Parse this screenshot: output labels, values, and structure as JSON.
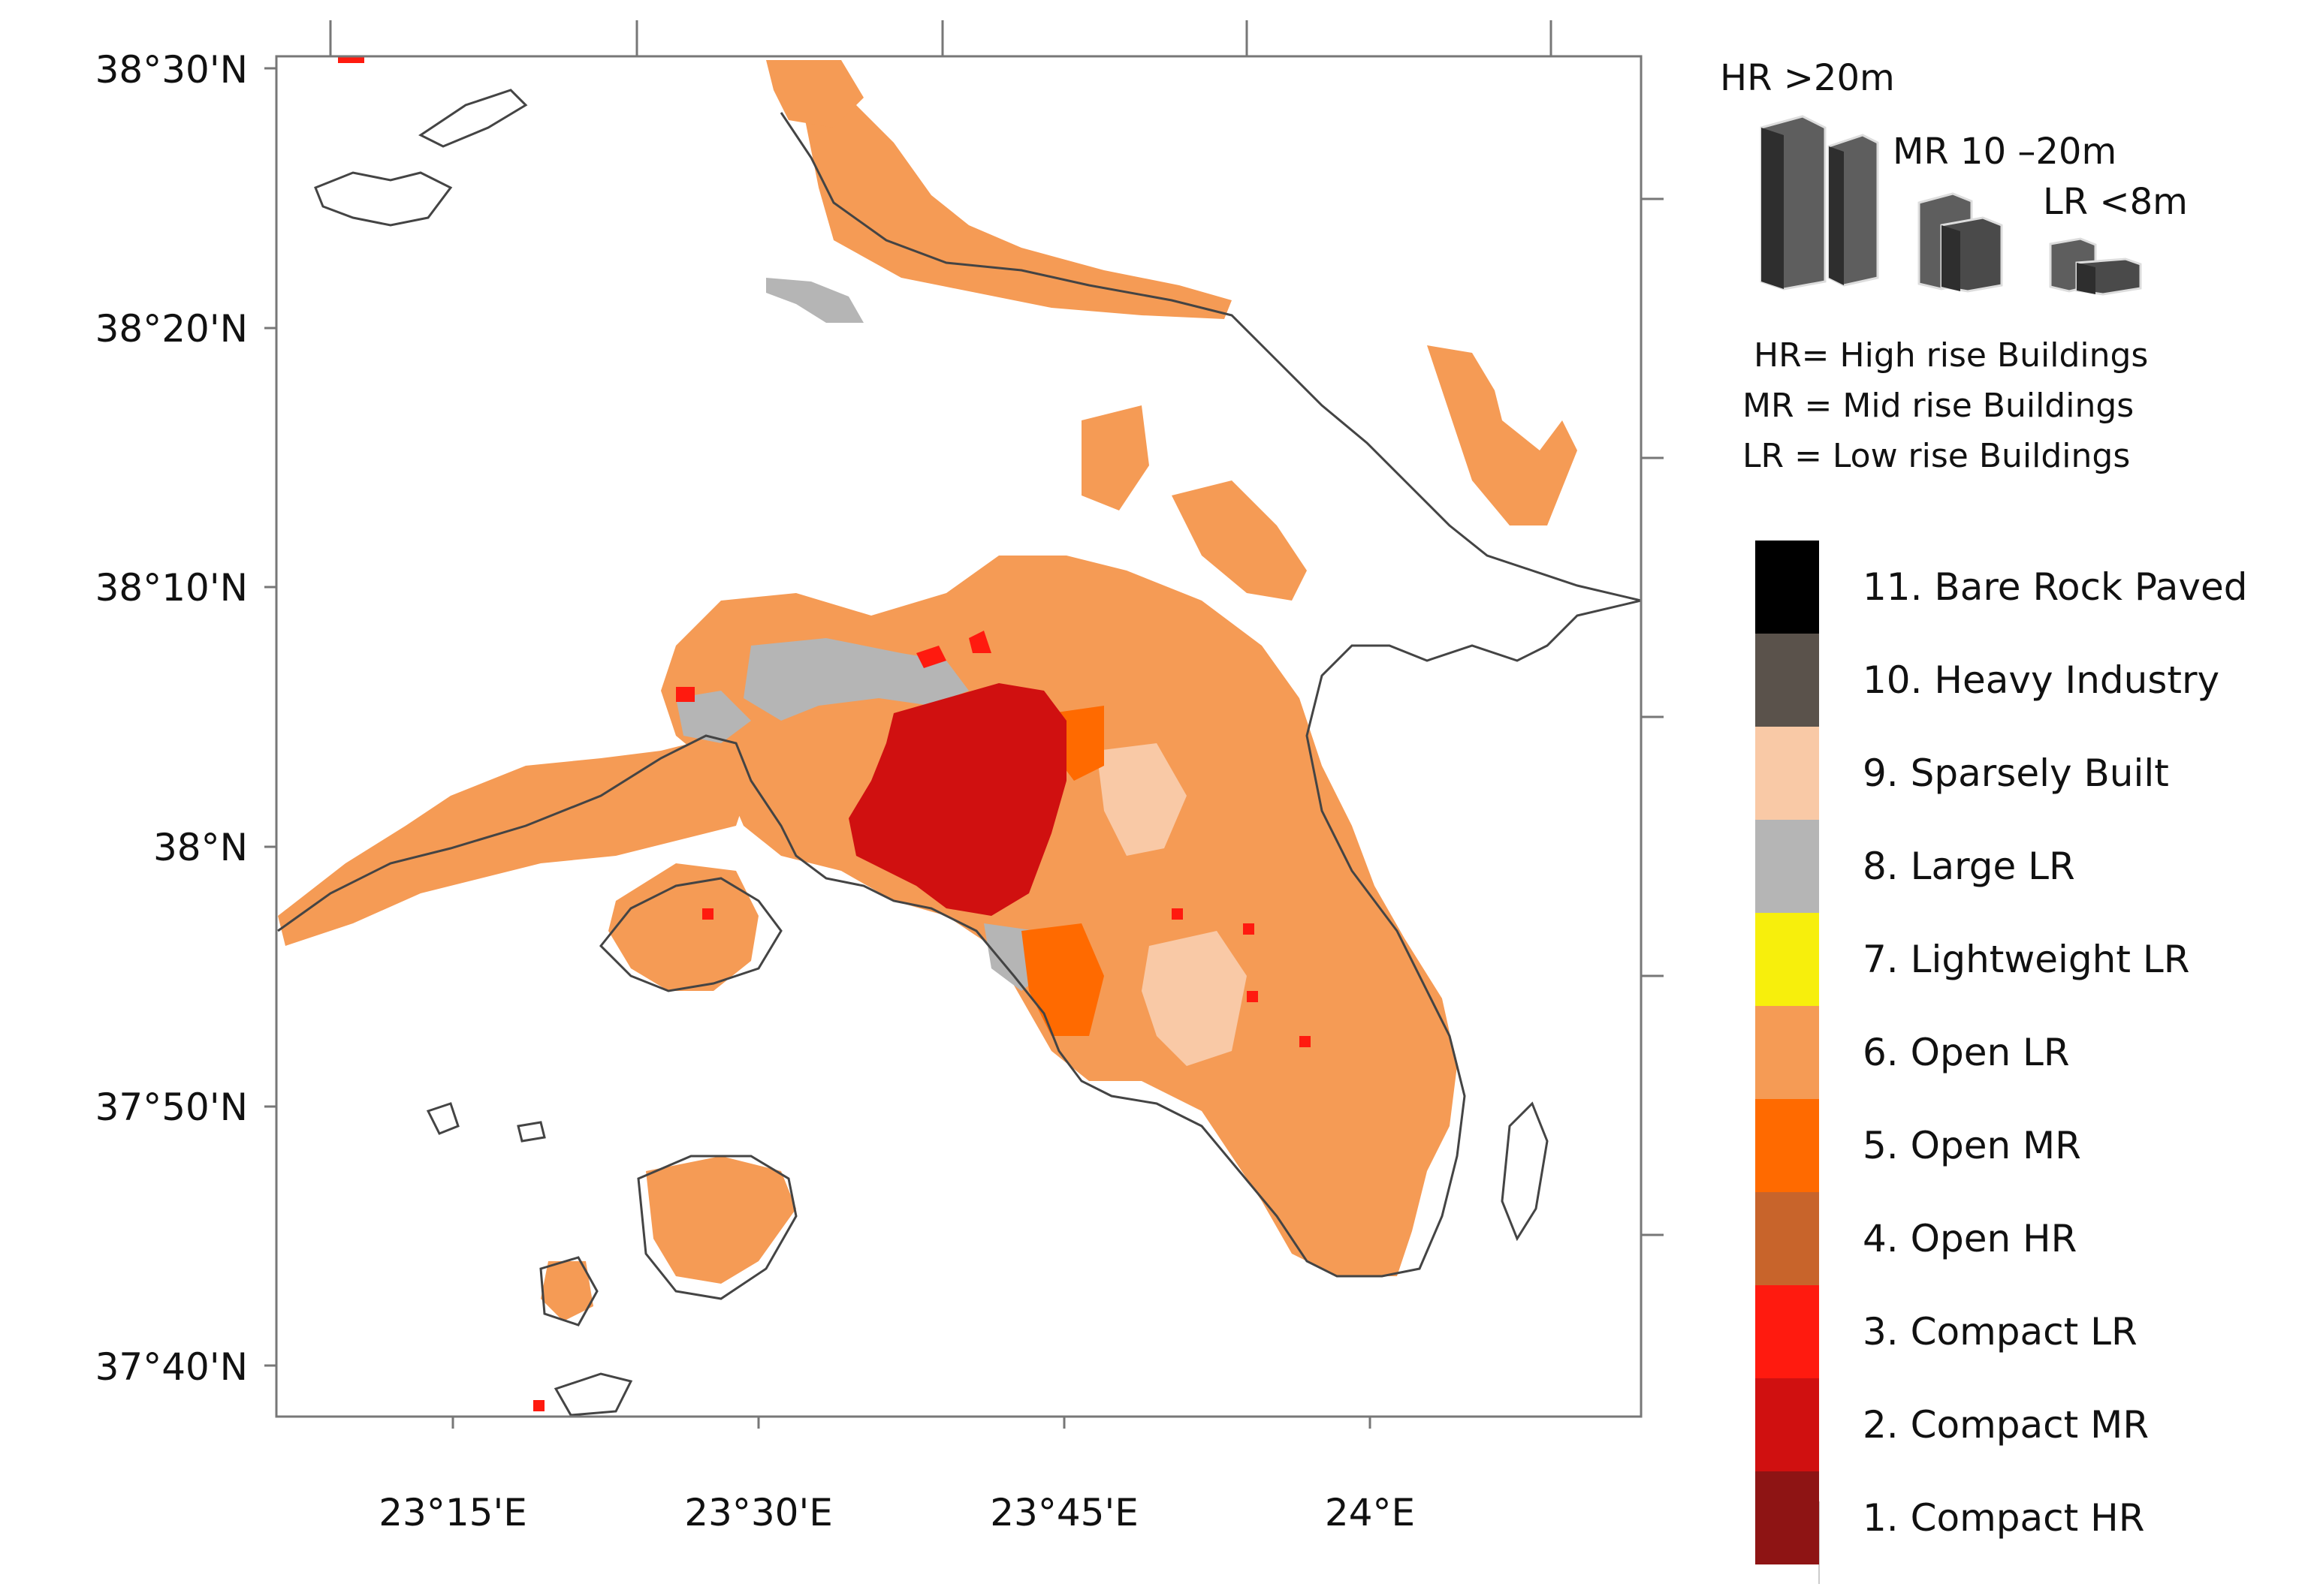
{
  "axes": {
    "lat_ticks": [
      "38°30'N",
      "38°20'N",
      "38°10'N",
      "38°N",
      "37°50'N",
      "37°40'N"
    ],
    "lon_ticks": [
      "23°15'E",
      "23°30'E",
      "23°45'E",
      "24°E"
    ]
  },
  "building_key": {
    "hr_label": "HR >20m",
    "mr_label": "MR 10 –20m",
    "lr_label": "LR <8m",
    "definitions": [
      "HR= High rise Buildings",
      "MR = Mid rise Buildings",
      "LR = Low rise Buildings"
    ]
  },
  "legend": {
    "classes": [
      {
        "label": "11. Bare Rock Paved",
        "color": "#000000"
      },
      {
        "label": "10.  Heavy Industry",
        "color": "#5a524b"
      },
      {
        "label": "9.  Sparsely Built",
        "color": "#f9c9a6"
      },
      {
        "label": "8.  Large LR",
        "color": "#b5b5b5"
      },
      {
        "label": "7.  Lightweight LR",
        "color": "#f7ef0c"
      },
      {
        "label": "6.  Open LR",
        "color": "#f59b55"
      },
      {
        "label": "5.  Open MR",
        "color": "#ff6a00"
      },
      {
        "label": "4.  Open HR",
        "color": "#c8642b"
      },
      {
        "label": "3.  Compact LR",
        "color": "#ff1a0f"
      },
      {
        "label": "2.  Compact MR",
        "color": "#d01010"
      },
      {
        "label": "1.  Compact HR",
        "color": "#8e1414"
      }
    ]
  },
  "colors": {
    "coastline": "#444444",
    "frame": "#777777"
  }
}
